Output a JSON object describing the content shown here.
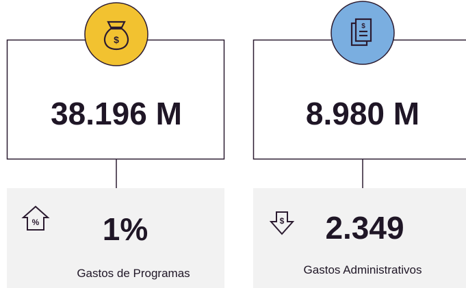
{
  "cards": [
    {
      "value": "38.196 M",
      "stat": "1%",
      "label": "Gastos de Programas"
    },
    {
      "value": "8.980 M",
      "stat": "2.349",
      "label": "Gastos Administrativos"
    }
  ]
}
